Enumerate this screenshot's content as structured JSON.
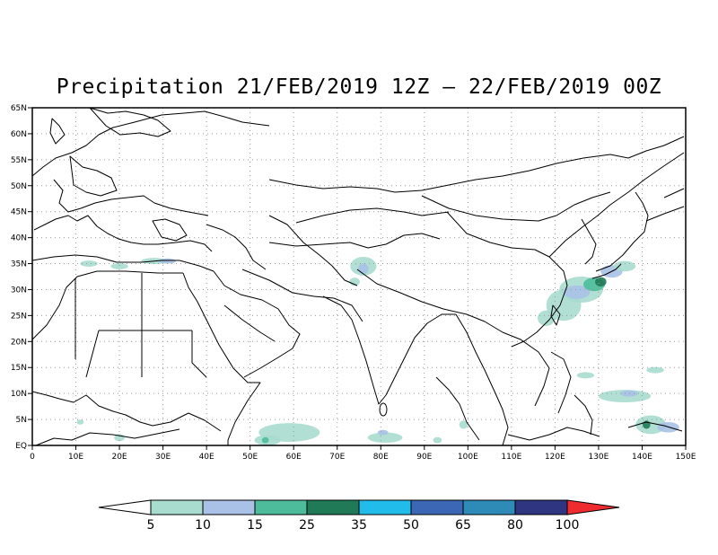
{
  "title": "Precipitation 21/FEB/2019 12Z – 22/FEB/2019 00Z",
  "map": {
    "lon_range": [
      0,
      150
    ],
    "lat_range": [
      0,
      65
    ],
    "grid": "dotted",
    "x_tick_labels": [
      "0",
      "10E",
      "20E",
      "30E",
      "40E",
      "50E",
      "60E",
      "70E",
      "80E",
      "90E",
      "100E",
      "110E",
      "120E",
      "130E",
      "140E",
      "150E"
    ],
    "y_tick_labels": [
      "EQ",
      "5N",
      "10N",
      "15N",
      "20N",
      "25N",
      "30N",
      "35N",
      "40N",
      "45N",
      "50N",
      "55N",
      "60N",
      "65N"
    ],
    "coastline_color": "#000000",
    "precip_areas": [
      {
        "level": 5,
        "lon": 13,
        "lat": 35,
        "size_lon": 2,
        "size_lat": 0.6
      },
      {
        "level": 5,
        "lon": 20,
        "lat": 34.5,
        "size_lon": 2,
        "size_lat": 0.6
      },
      {
        "level": 5,
        "lon": 28,
        "lat": 35.5,
        "size_lon": 3,
        "size_lat": 0.6
      },
      {
        "level": 10,
        "lon": 31,
        "lat": 35.5,
        "size_lon": 2,
        "size_lat": 0.5
      },
      {
        "level": 5,
        "lon": 76,
        "lat": 34.5,
        "size_lon": 3,
        "size_lat": 1.8
      },
      {
        "level": 10,
        "lon": 76,
        "lat": 34,
        "size_lon": 1.2,
        "size_lat": 1
      },
      {
        "level": 5,
        "lon": 74,
        "lat": 31.5,
        "size_lon": 1.2,
        "size_lat": 0.8
      },
      {
        "level": 5,
        "lon": 122,
        "lat": 27,
        "size_lon": 4,
        "size_lat": 3
      },
      {
        "level": 5,
        "lon": 118,
        "lat": 24.5,
        "size_lon": 2,
        "size_lat": 1.5
      },
      {
        "level": 5,
        "lon": 126,
        "lat": 30,
        "size_lon": 5,
        "size_lat": 2.5
      },
      {
        "level": 10,
        "lon": 125,
        "lat": 29.5,
        "size_lon": 3,
        "size_lat": 1.3
      },
      {
        "level": 15,
        "lon": 129,
        "lat": 31,
        "size_lon": 2.5,
        "size_lat": 1.3
      },
      {
        "level": 25,
        "lon": 130.5,
        "lat": 31.5,
        "size_lon": 1.3,
        "size_lat": 0.9
      },
      {
        "level": 10,
        "lon": 133,
        "lat": 33.5,
        "size_lon": 2.5,
        "size_lat": 1.2
      },
      {
        "level": 5,
        "lon": 136,
        "lat": 34.5,
        "size_lon": 2.5,
        "size_lat": 1
      },
      {
        "level": 5,
        "lon": 127,
        "lat": 13.5,
        "size_lon": 2,
        "size_lat": 0.6
      },
      {
        "level": 5,
        "lon": 143,
        "lat": 14.5,
        "size_lon": 2,
        "size_lat": 0.6
      },
      {
        "level": 5,
        "lon": 136,
        "lat": 9.5,
        "size_lon": 6,
        "size_lat": 1.2
      },
      {
        "level": 10,
        "lon": 137,
        "lat": 10,
        "size_lon": 2,
        "size_lat": 0.6
      },
      {
        "level": 5,
        "lon": 142,
        "lat": 4,
        "size_lon": 3.5,
        "size_lat": 1.8
      },
      {
        "level": 25,
        "lon": 141,
        "lat": 4,
        "size_lon": 0.9,
        "size_lat": 0.8
      },
      {
        "level": 10,
        "lon": 146,
        "lat": 3.5,
        "size_lon": 2.5,
        "size_lat": 1
      },
      {
        "level": 5,
        "lon": 59,
        "lat": 2.5,
        "size_lon": 7,
        "size_lat": 1.8
      },
      {
        "level": 5,
        "lon": 54,
        "lat": 1,
        "size_lon": 3,
        "size_lat": 1
      },
      {
        "level": 15,
        "lon": 53.5,
        "lat": 1,
        "size_lon": 0.8,
        "size_lat": 0.6
      },
      {
        "level": 5,
        "lon": 81,
        "lat": 1.5,
        "size_lon": 4,
        "size_lat": 1
      },
      {
        "level": 10,
        "lon": 80.5,
        "lat": 2.5,
        "size_lon": 1.2,
        "size_lat": 0.5
      },
      {
        "level": 5,
        "lon": 99,
        "lat": 4,
        "size_lon": 1,
        "size_lat": 0.8
      },
      {
        "level": 5,
        "lon": 93,
        "lat": 1,
        "size_lon": 1,
        "size_lat": 0.6
      },
      {
        "level": 5,
        "lon": 20,
        "lat": 1.5,
        "size_lon": 1.2,
        "size_lat": 0.7
      },
      {
        "level": 5,
        "lon": 11,
        "lat": 4.5,
        "size_lon": 0.8,
        "size_lat": 0.5
      }
    ]
  },
  "colorbar": {
    "labels": [
      "5",
      "10",
      "15",
      "25",
      "35",
      "50",
      "65",
      "80",
      "100"
    ],
    "colors": [
      "#ffffff",
      "#a8dccf",
      "#a9c1e6",
      "#4cbc9b",
      "#217a57",
      "#22bcea",
      "#3b67b5",
      "#2e8bb7",
      "#2f3580",
      "#ee2b2e"
    ]
  }
}
